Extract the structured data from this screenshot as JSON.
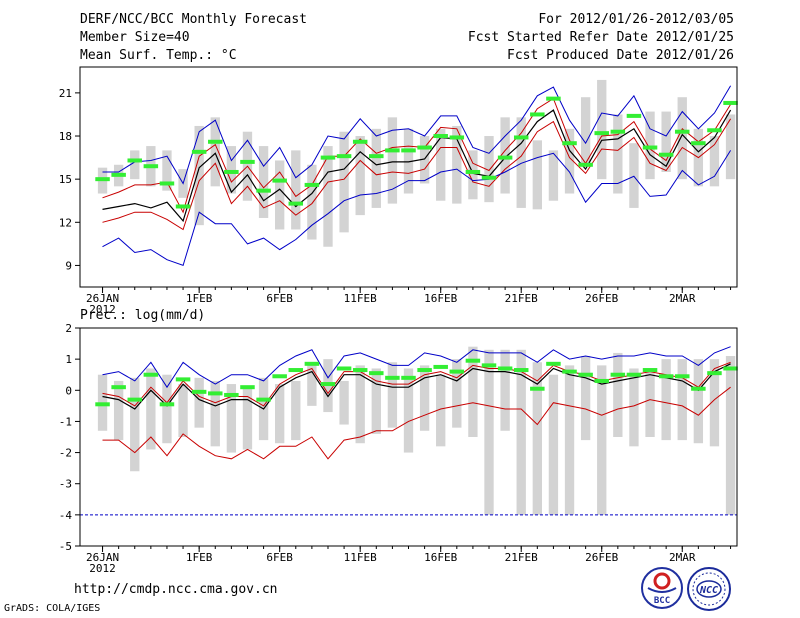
{
  "header": {
    "title": "DERF/NCC/BCC Monthly Forecast",
    "member_size": "Member Size=40",
    "variable": "Mean Surf. Temp.: °C",
    "period": "For 2012/01/26-2012/03/05",
    "start_date": "Fcst Started Refer Date 2012/01/25",
    "produced_date": "Fcst Produced Date 2012/01/26"
  },
  "footer": {
    "url": "http://cmdp.ncc.cma.gov.cn",
    "credit": "GrADS: COLA/IGES",
    "logo_bcc_text": "BCC",
    "logo_ncc_text": "NCC"
  },
  "colors": {
    "box": "#d3d3d3",
    "outer_line": "#0000c8",
    "inner_line": "#c80000",
    "mean_line": "#000000",
    "obs_bar": "#33ee33",
    "frame": "#000000"
  },
  "chart_data": [
    {
      "type": "line",
      "title": "Mean Surf. Temp.: °C",
      "xlabel": "",
      "ylabel": "",
      "x_ticks": [
        "26JAN",
        "1FEB",
        "6FEB",
        "11FEB",
        "16FEB",
        "21FEB",
        "26FEB",
        "2MAR"
      ],
      "x_tick_sub": "2012",
      "x_tick_days": [
        1,
        7,
        12,
        17,
        22,
        27,
        32,
        37
      ],
      "days": 40,
      "ylim": [
        7.5,
        22.8
      ],
      "yticks": [
        9,
        12,
        15,
        18,
        21
      ],
      "box_min": [
        14.0,
        14.5,
        15.0,
        14.5,
        14.2,
        13.7,
        11.8,
        14.5,
        14.0,
        13.5,
        12.3,
        11.5,
        11.5,
        10.8,
        10.3,
        11.3,
        12.5,
        13.0,
        13.3,
        14.0,
        14.7,
        13.5,
        13.3,
        13.6,
        13.4,
        14.0,
        13.0,
        12.9,
        13.5,
        14.0,
        16.0,
        15.0,
        14.0,
        13.0,
        15.0,
        15.5,
        15.0,
        14.5,
        14.5,
        15.0
      ],
      "box_max": [
        15.8,
        16.0,
        17.0,
        17.3,
        17.0,
        15.7,
        18.7,
        19.3,
        17.3,
        18.3,
        17.3,
        16.3,
        17.0,
        16.0,
        17.3,
        18.3,
        18.0,
        18.5,
        19.3,
        18.5,
        18.0,
        18.5,
        18.7,
        17.0,
        18.0,
        19.3,
        19.3,
        17.7,
        17.0,
        18.5,
        20.7,
        21.9,
        19.5,
        17.5,
        19.7,
        19.7,
        20.7,
        18.5,
        18.0,
        19.5
      ],
      "obs_mean": [
        15.0,
        15.3,
        16.3,
        15.9,
        14.7,
        13.1,
        16.9,
        17.6,
        15.5,
        16.2,
        14.2,
        14.9,
        13.3,
        14.6,
        16.5,
        16.6,
        17.6,
        16.6,
        17.0,
        17.0,
        17.2,
        18.0,
        17.9,
        15.5,
        15.1,
        16.5,
        17.9,
        19.5,
        20.6,
        17.5,
        16.0,
        18.2,
        18.3,
        19.4,
        17.2,
        16.7,
        18.3,
        17.5,
        18.4,
        20.3
      ],
      "series": [
        {
          "name": "max",
          "values": [
            15.5,
            15.5,
            16.2,
            16.3,
            16.6,
            14.7,
            18.3,
            19.1,
            16.3,
            17.7,
            15.9,
            17.2,
            15.1,
            16.0,
            18.0,
            17.8,
            19.2,
            18.0,
            18.4,
            18.5,
            18.0,
            19.4,
            19.4,
            17.2,
            16.8,
            18.0,
            19.1,
            20.8,
            21.4,
            19.1,
            17.5,
            19.6,
            19.4,
            20.8,
            18.5,
            18.0,
            19.7,
            18.5,
            19.6,
            21.5
          ]
        },
        {
          "name": "upper",
          "values": [
            13.7,
            14.1,
            14.6,
            14.6,
            14.8,
            12.7,
            16.6,
            17.4,
            14.8,
            15.9,
            14.4,
            15.5,
            13.8,
            14.6,
            16.6,
            16.6,
            17.8,
            16.8,
            17.2,
            17.3,
            17.2,
            18.6,
            18.5,
            16.1,
            15.6,
            17.0,
            18.2,
            19.9,
            20.6,
            17.7,
            16.1,
            18.0,
            18.1,
            19.0,
            17.1,
            16.3,
            18.5,
            17.6,
            18.4,
            20.2
          ]
        },
        {
          "name": "mean",
          "values": [
            12.9,
            13.1,
            13.3,
            13.0,
            13.4,
            12.1,
            15.8,
            16.8,
            14.1,
            15.3,
            13.5,
            14.3,
            13.1,
            14.0,
            15.5,
            15.7,
            16.9,
            16.0,
            16.2,
            16.2,
            16.4,
            17.9,
            17.8,
            15.4,
            15.2,
            16.5,
            17.5,
            19.0,
            19.8,
            17.0,
            15.7,
            17.7,
            17.8,
            18.5,
            16.7,
            15.9,
            18.1,
            16.9,
            17.9,
            19.8
          ]
        },
        {
          "name": "lower",
          "values": [
            12.0,
            12.3,
            12.7,
            12.7,
            12.2,
            11.5,
            14.9,
            16.1,
            13.3,
            14.5,
            13.0,
            13.5,
            12.5,
            13.3,
            14.8,
            15.0,
            16.3,
            15.3,
            15.5,
            15.4,
            15.7,
            17.2,
            17.2,
            14.8,
            14.5,
            15.7,
            16.6,
            18.3,
            19.0,
            16.5,
            15.4,
            17.1,
            17.0,
            17.9,
            16.1,
            15.6,
            17.2,
            16.5,
            17.4,
            19.2
          ]
        },
        {
          "name": "min",
          "values": [
            10.3,
            10.9,
            9.9,
            10.1,
            9.4,
            9.0,
            12.7,
            11.9,
            11.9,
            10.5,
            10.9,
            10.1,
            10.8,
            11.8,
            12.6,
            13.5,
            13.9,
            14.0,
            14.3,
            14.9,
            14.9,
            15.5,
            15.7,
            14.9,
            15.0,
            15.5,
            16.1,
            16.5,
            16.8,
            15.5,
            13.4,
            14.7,
            14.7,
            15.2,
            13.8,
            13.9,
            15.6,
            14.6,
            15.2,
            17.0
          ]
        }
      ]
    },
    {
      "type": "line",
      "title": "Prec.: log(mm/d)",
      "xlabel": "",
      "ylabel": "",
      "x_ticks": [
        "26JAN",
        "1FEB",
        "6FEB",
        "11FEB",
        "16FEB",
        "21FEB",
        "26FEB",
        "2MAR"
      ],
      "x_tick_sub": "2012",
      "x_tick_days": [
        1,
        7,
        12,
        17,
        22,
        27,
        32,
        37
      ],
      "days": 40,
      "ylim": [
        -5,
        2
      ],
      "yticks": [
        -5,
        -4,
        -3,
        -2,
        -1,
        0,
        1,
        2
      ],
      "box_min": [
        -1.3,
        -1.6,
        -2.6,
        -1.9,
        -1.7,
        -1.5,
        -1.2,
        -1.8,
        -2.0,
        -1.9,
        -1.6,
        -1.7,
        -1.6,
        -0.5,
        -0.7,
        -1.1,
        -1.7,
        -1.4,
        -1.2,
        -2.0,
        -1.3,
        -1.8,
        -1.2,
        -1.5,
        -4.0,
        -1.3,
        -4.0,
        -4.0,
        -4.0,
        -4.0,
        -1.6,
        -4.0,
        -1.5,
        -1.8,
        -1.5,
        -1.6,
        -1.6,
        -1.7,
        -1.8,
        -4.0
      ],
      "box_max": [
        0.5,
        0.3,
        0.4,
        0.7,
        0.5,
        0.2,
        0.4,
        0.3,
        0.2,
        0.1,
        0.4,
        0.2,
        0.3,
        0.9,
        1.0,
        0.3,
        0.8,
        0.7,
        0.9,
        0.7,
        0.8,
        0.5,
        1.0,
        1.4,
        1.3,
        1.3,
        1.3,
        0.9,
        0.5,
        0.8,
        1.1,
        0.8,
        1.2,
        0.7,
        0.6,
        1.0,
        1.0,
        1.0,
        1.0,
        1.1
      ],
      "obs_mean": [
        -0.45,
        0.1,
        -0.3,
        0.5,
        -0.45,
        0.35,
        -0.05,
        -0.1,
        -0.15,
        0.1,
        -0.3,
        0.45,
        0.65,
        0.85,
        0.2,
        0.7,
        0.65,
        0.55,
        0.4,
        0.4,
        0.65,
        0.75,
        0.6,
        0.95,
        0.8,
        0.7,
        0.65,
        0.05,
        0.85,
        0.6,
        0.5,
        0.3,
        0.5,
        0.5,
        0.65,
        0.45,
        0.45,
        0.05,
        0.55,
        0.7
      ],
      "series": [
        {
          "name": "max",
          "values": [
            0.5,
            0.6,
            0.3,
            0.9,
            0.1,
            0.9,
            0.5,
            0.2,
            0.5,
            0.5,
            0.3,
            0.8,
            1.1,
            1.3,
            0.4,
            1.1,
            1.2,
            1.0,
            0.8,
            0.8,
            1.2,
            1.1,
            0.9,
            1.3,
            1.2,
            1.2,
            1.2,
            0.9,
            1.3,
            1.0,
            1.1,
            1.0,
            1.1,
            1.1,
            1.2,
            1.1,
            1.1,
            0.8,
            1.2,
            1.4
          ]
        },
        {
          "name": "upper",
          "values": [
            -0.1,
            -0.2,
            -0.5,
            0.1,
            -0.4,
            0.3,
            -0.2,
            -0.4,
            -0.2,
            -0.2,
            -0.5,
            0.2,
            0.5,
            0.7,
            -0.1,
            0.6,
            0.6,
            0.3,
            0.2,
            0.2,
            0.5,
            0.6,
            0.4,
            0.8,
            0.7,
            0.7,
            0.6,
            0.3,
            0.8,
            0.6,
            0.5,
            0.3,
            0.4,
            0.5,
            0.6,
            0.5,
            0.4,
            0.1,
            0.7,
            0.9
          ]
        },
        {
          "name": "mean",
          "values": [
            -0.2,
            -0.3,
            -0.6,
            0.0,
            -0.5,
            0.2,
            -0.3,
            -0.5,
            -0.3,
            -0.3,
            -0.6,
            0.1,
            0.4,
            0.6,
            -0.2,
            0.5,
            0.5,
            0.2,
            0.1,
            0.1,
            0.4,
            0.5,
            0.3,
            0.7,
            0.6,
            0.6,
            0.5,
            0.2,
            0.7,
            0.5,
            0.4,
            0.2,
            0.3,
            0.4,
            0.5,
            0.4,
            0.3,
            0.0,
            0.6,
            0.85
          ]
        },
        {
          "name": "lower",
          "values": [
            -1.6,
            -1.6,
            -2.0,
            -1.5,
            -2.1,
            -1.4,
            -1.8,
            -2.1,
            -2.2,
            -1.9,
            -2.2,
            -1.8,
            -1.8,
            -1.5,
            -2.2,
            -1.6,
            -1.5,
            -1.3,
            -1.3,
            -1.0,
            -0.8,
            -0.6,
            -0.5,
            -0.4,
            -0.5,
            -0.6,
            -0.6,
            -1.1,
            -0.4,
            -0.5,
            -0.6,
            -0.8,
            -0.6,
            -0.5,
            -0.3,
            -0.4,
            -0.5,
            -0.8,
            -0.3,
            0.1
          ]
        },
        {
          "name": "min",
          "values": [
            -4.0,
            -4.0,
            -4.0,
            -4.0,
            -4.0,
            -4.0,
            -4.0,
            -4.0,
            -4.0,
            -4.0,
            -4.0,
            -4.0,
            -4.0,
            -4.0,
            -4.0,
            -4.0,
            -4.0,
            -4.0,
            -4.0,
            -4.0,
            -4.0,
            -4.0,
            -4.0,
            -4.0,
            -4.0,
            -4.0,
            -4.0,
            -4.0,
            -4.0,
            -4.0,
            -4.0,
            -4.0,
            -4.0,
            -4.0,
            -4.0,
            -4.0,
            -4.0,
            -4.0,
            -4.0,
            -4.0
          ]
        }
      ]
    }
  ]
}
